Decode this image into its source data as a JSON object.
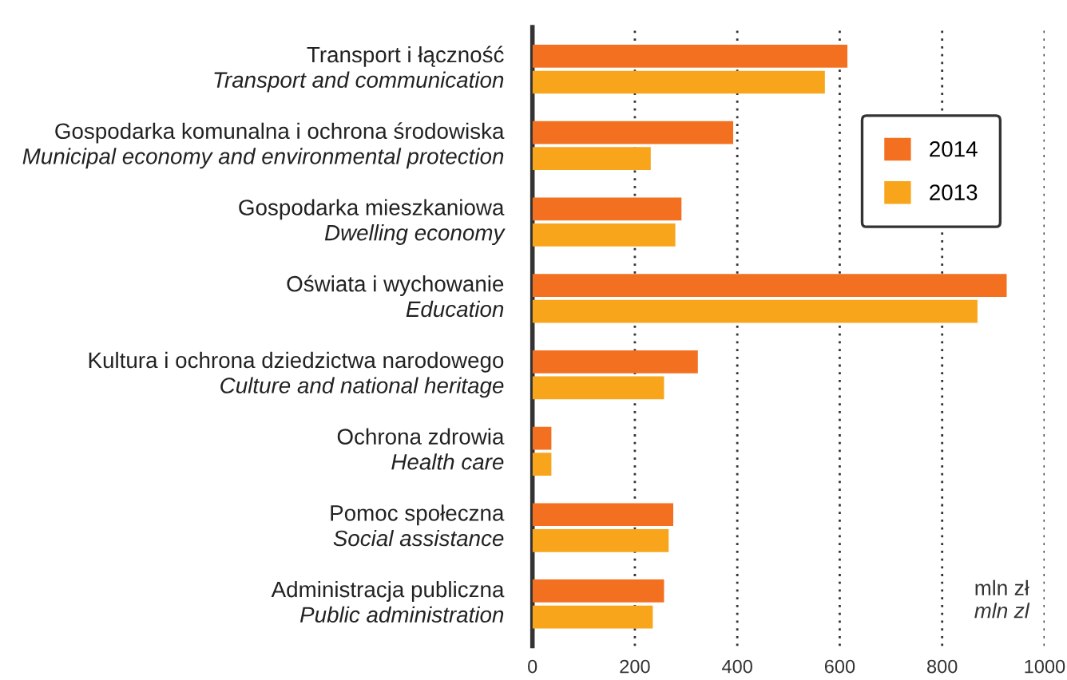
{
  "chart_data": {
    "type": "bar",
    "orientation": "horizontal",
    "categories": [
      "Transport i łączność\nTransport and communication",
      "Gospodarka komunalna i ochrona środowiska\nMunicipal economy and environmental protection",
      "Gospodarka mieszkaniowa\nDwelling economy",
      "Oświata i wychowanie\nEducation",
      "Kultura i ochrona dziedzictwa narodowego\nCulture and national heritage",
      "Ochrona zdrowia\nHealth care",
      "Pomoc społeczna\nSocial assistance",
      "Administracja publiczna\nPublic administration"
    ],
    "series": [
      {
        "name": "2014",
        "color": "#f37021",
        "values": [
          615,
          392,
          291,
          926,
          323,
          37,
          275,
          257
        ]
      },
      {
        "name": "2013",
        "color": "#f8a51b",
        "values": [
          571,
          231,
          279,
          869,
          257,
          37,
          266,
          235
        ]
      }
    ],
    "xlim": [
      0,
      1000
    ],
    "xticks": [
      0,
      200,
      400,
      600,
      800,
      1000
    ],
    "grid": "x",
    "legend": "top right",
    "annotations": [
      "mln zł\nmln zl"
    ]
  }
}
